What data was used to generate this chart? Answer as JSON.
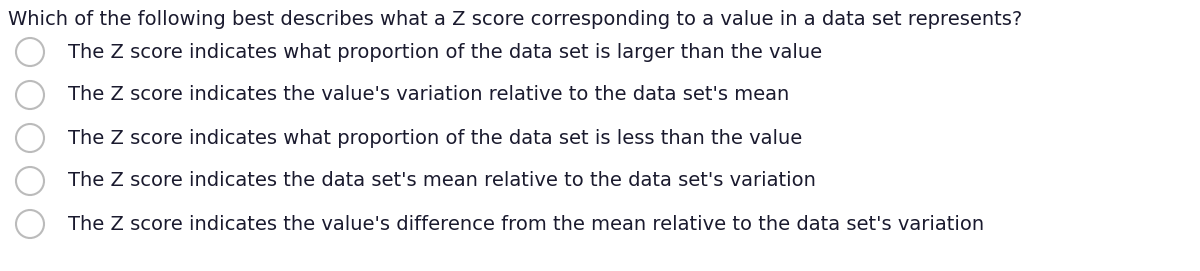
{
  "background_color": "#ffffff",
  "question": "Which of the following best describes what a Z score corresponding to a value in a data set represents?",
  "options": [
    "The Z score indicates what proportion of the data set is larger than the value",
    "The Z score indicates the value's variation relative to the data set's mean",
    "The Z score indicates what proportion of the data set is less than the value",
    "The Z score indicates the data set's mean relative to the data set's variation",
    "The Z score indicates the value's difference from the mean relative to the data set's variation"
  ],
  "question_fontsize": 14,
  "option_fontsize": 14,
  "question_color": "#1a1a2e",
  "text_color": "#1a1a2e",
  "circle_edge_color": "#bbbbbb",
  "circle_fill_color": "#ffffff",
  "circle_linewidth": 1.5
}
